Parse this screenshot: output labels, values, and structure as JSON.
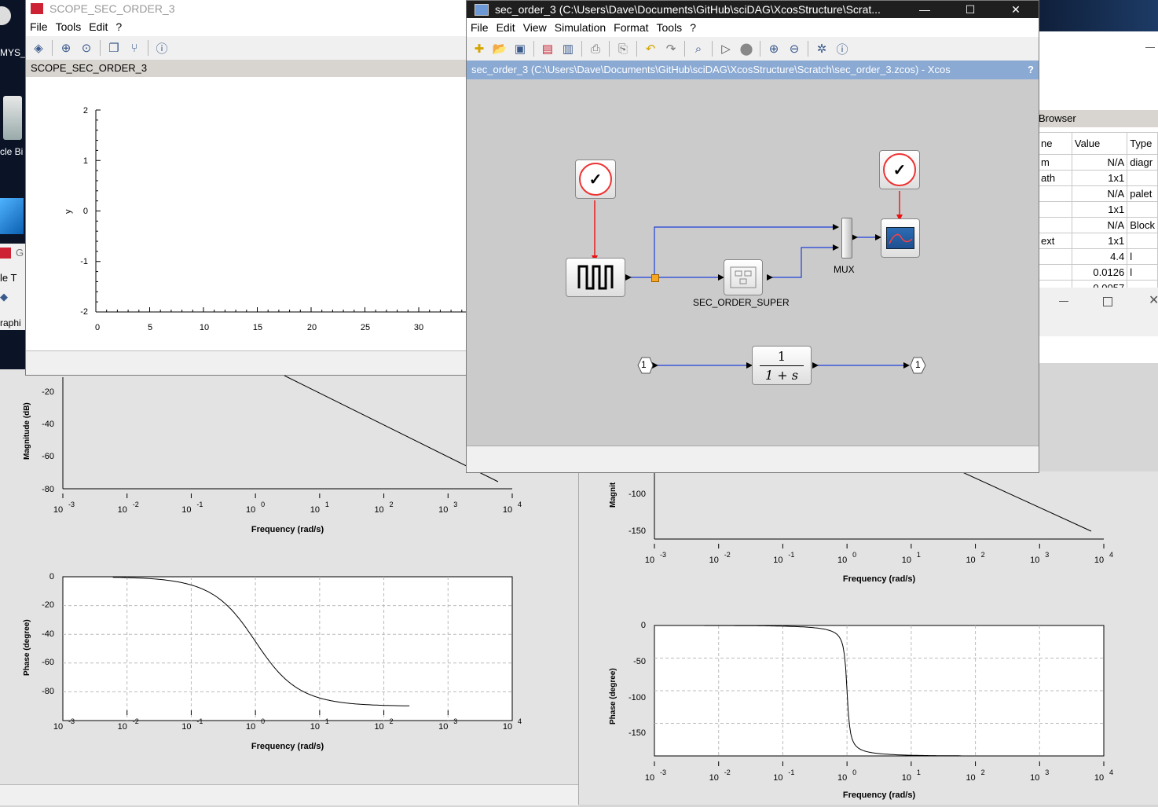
{
  "desktop": {
    "labels": [
      "MYS_",
      "cle Bi",
      "G",
      "le T",
      "raphi"
    ]
  },
  "scope_window": {
    "title": "SCOPE_SEC_ORDER_3",
    "menu": [
      "File",
      "Tools",
      "Edit",
      "?"
    ],
    "header": "SCOPE_SEC_ORDER_3",
    "ylabel": "y",
    "yticks": [
      "2",
      "1",
      "0",
      "-1",
      "-2"
    ],
    "xticks": [
      "0",
      "5",
      "10",
      "15",
      "20",
      "25",
      "30"
    ]
  },
  "xcos_window": {
    "title": "sec_order_3 (C:\\Users\\Dave\\Documents\\GitHub\\sciDAG\\XcosStructure\\Scrat...",
    "menu": [
      "File",
      "Edit",
      "View",
      "Simulation",
      "Format",
      "Tools",
      "?"
    ],
    "header": "sec_order_3 (C:\\Users\\Dave\\Documents\\GitHub\\sciDAG\\XcosStructure\\Scratch\\sec_order_3.zcos) - Xcos",
    "help_glyph": "?",
    "blocks": {
      "super_label": "SEC_ORDER_SUPER",
      "mux_label": "MUX",
      "tf_num": "1",
      "tf_den": "1 + s",
      "in_port": "1",
      "out_port": "1"
    }
  },
  "browser_window": {
    "title": "Browser",
    "columns": [
      "ne",
      "Value",
      "Type"
    ],
    "rows": [
      [
        "m",
        "N/A",
        "diagr"
      ],
      [
        "ath",
        "1x1",
        ""
      ],
      [
        "",
        "N/A",
        "palet"
      ],
      [
        "",
        "1x1",
        ""
      ],
      [
        "",
        "N/A",
        "Block"
      ],
      [
        "ext",
        "1x1",
        ""
      ],
      [
        "",
        "4.4",
        "l"
      ],
      [
        "",
        "0.0126",
        "l"
      ],
      [
        "",
        "0.0057",
        ""
      ]
    ]
  },
  "bode_left": {
    "magnitude": {
      "ylabel": "Magnitude (dB)",
      "yticks": [
        "-20",
        "-40",
        "-60",
        "-80"
      ],
      "xlabel": "Frequency (rad/s)"
    },
    "phase": {
      "ylabel": "Phase (degree)",
      "yticks": [
        "0",
        "-20",
        "-40",
        "-60",
        "-80"
      ],
      "xlabel": "Frequency (rad/s)"
    }
  },
  "bode_right": {
    "magnitude": {
      "ylabel": "Magnit",
      "yticks": [
        "-100",
        "-150"
      ],
      "xlabel": "Frequency (rad/s)"
    },
    "phase": {
      "ylabel": "Phase (degree)",
      "yticks": [
        "0",
        "-50",
        "-100",
        "-150"
      ],
      "xlabel": "Frequency (rad/s)"
    }
  },
  "log_ticks": {
    "base": "10",
    "exponents": [
      "-3",
      "-2",
      "-1",
      "0",
      "1",
      "2",
      "3",
      "4"
    ]
  },
  "colors": {
    "accent_blue": "#8aa9d3",
    "link_blue": "#1f3fd9",
    "event_red": "#ee1111",
    "split_orange": "#f5a623"
  }
}
